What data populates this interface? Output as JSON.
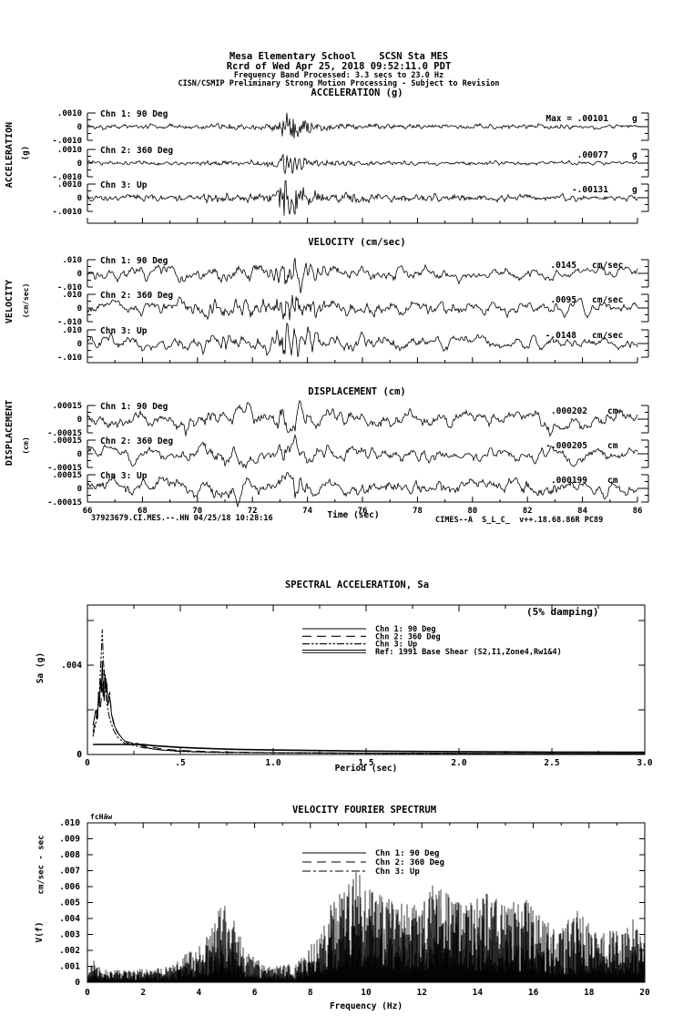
{
  "header": {
    "lines": [
      "Mesa Elementary School    SCSN Sta MES",
      "Rcrd of Wed Apr 25, 2018 09:52:11.0 PDT",
      "Frequency Band Processed: 3.3 secs to 23.0 Hz",
      "CISN/CSMIP Preliminary Strong Motion Processing - Subject to Revision"
    ]
  },
  "footer": {
    "record_id": "37923679.CI.MES.--.HN 04/25/18 10:28:16",
    "processing_stamp": "CIMES--A  S_L_C_  v++.18.68.86R PC89"
  },
  "chart_data": [
    {
      "id": "acceleration_time_series",
      "type": "line",
      "title": "ACCELERATION (g)",
      "axis_label": "ACCELERATION",
      "axis_units": "(g)",
      "x_range": [
        66,
        86
      ],
      "x_ticks": [
        66,
        68,
        70,
        72,
        74,
        76,
        78,
        80,
        82,
        84,
        86
      ],
      "x_tick_labels_visible": false,
      "y_tick_value": 0.001,
      "y_tick_labels": [
        ".0010",
        "0",
        "-.0010"
      ],
      "channels": [
        {
          "label": "Chn 1: 90 Deg",
          "max_label": "Max =  .00101",
          "units": "g",
          "peak": 0.00101
        },
        {
          "label": "Chn 2: 360 Deg",
          "max_label": ".00077",
          "units": "g",
          "peak": 0.00077
        },
        {
          "label": "Chn 3: Up",
          "max_label": "-.00131",
          "units": "g",
          "peak": -0.00131
        }
      ],
      "envelope": {
        "t": [
          66,
          68,
          69.5,
          70.2,
          71.0,
          71.8,
          72.4,
          72.9,
          73.05,
          73.2,
          73.4,
          73.7,
          74.0,
          74.5,
          75.2,
          76.5,
          78,
          80,
          82,
          84,
          86
        ],
        "a": [
          0.05,
          0.06,
          0.07,
          0.09,
          0.12,
          0.1,
          0.1,
          0.25,
          0.55,
          1.0,
          0.8,
          0.5,
          0.32,
          0.2,
          0.13,
          0.09,
          0.07,
          0.06,
          0.06,
          0.05,
          0.05
        ]
      },
      "gen": {
        "hi_w": 1,
        "lo_w": 3,
        "lo_amp": 0.16,
        "seeds": [
          101,
          102,
          103
        ]
      }
    },
    {
      "id": "velocity_time_series",
      "type": "line",
      "title": "VELOCITY (cm/sec)",
      "axis_label": "VELOCITY",
      "axis_units": "(cm/sec)",
      "x_range": [
        66,
        86
      ],
      "x_ticks": [
        66,
        68,
        70,
        72,
        74,
        76,
        78,
        80,
        82,
        84,
        86
      ],
      "x_tick_labels_visible": false,
      "y_tick_value": 0.01,
      "y_tick_labels": [
        ".010",
        "0",
        "-.010"
      ],
      "channels": [
        {
          "label": "Chn 1: 90 Deg",
          "max_label": ".0145",
          "units": "cm/sec",
          "peak": 0.0145
        },
        {
          "label": "Chn 2: 360 Deg",
          "max_label": ".0095",
          "units": "cm/sec",
          "peak": 0.0095
        },
        {
          "label": "Chn 3: Up",
          "max_label": "-.0148",
          "units": "cm/sec",
          "peak": -0.0148
        }
      ],
      "envelope": {
        "t": [
          66,
          68,
          69.5,
          70.2,
          71.0,
          71.8,
          72.4,
          72.9,
          73.05,
          73.2,
          73.4,
          73.7,
          74.0,
          74.5,
          75.2,
          76.5,
          78,
          80,
          82,
          84,
          86
        ],
        "a": [
          0.1,
          0.12,
          0.14,
          0.22,
          0.28,
          0.22,
          0.25,
          0.45,
          0.7,
          1.0,
          0.85,
          0.6,
          0.45,
          0.32,
          0.22,
          0.16,
          0.13,
          0.11,
          0.1,
          0.09,
          0.09
        ]
      },
      "gen": {
        "hi_w": 2,
        "lo_w": 6,
        "lo_amp": 0.3,
        "seeds": [
          201,
          202,
          203
        ]
      }
    },
    {
      "id": "displacement_time_series",
      "type": "line",
      "title": "DISPLACEMENT (cm)",
      "axis_label": "DISPLACEMENT",
      "axis_units": "(cm)",
      "xlabel": "Time (sec)",
      "x_range": [
        66,
        86
      ],
      "x_ticks": [
        66,
        68,
        70,
        72,
        74,
        76,
        78,
        80,
        82,
        84,
        86
      ],
      "x_tick_labels": [
        "66",
        "68",
        "70",
        "72",
        "74",
        "76",
        "78",
        "80",
        "82",
        "84",
        "86"
      ],
      "x_tick_labels_visible": true,
      "y_tick_value": 0.00015,
      "y_tick_labels": [
        ".00015",
        "0",
        "-.00015"
      ],
      "channels": [
        {
          "label": "Chn 1: 90 Deg",
          "max_label": ".000202",
          "units": "cm",
          "peak": 0.000202
        },
        {
          "label": "Chn 2: 360 Deg",
          "max_label": "-.000205",
          "units": "cm",
          "peak": -0.000205
        },
        {
          "label": "Chn 3: Up",
          "max_label": ".000199",
          "units": "cm",
          "peak": 0.000199
        }
      ],
      "envelope": {
        "t": [
          66,
          68,
          69.5,
          70.2,
          71.0,
          71.8,
          72.4,
          72.9,
          73.05,
          73.2,
          73.4,
          73.7,
          74.0,
          74.5,
          75.2,
          76.5,
          78,
          80,
          82,
          84,
          86
        ],
        "a": [
          0.3,
          0.32,
          0.38,
          0.55,
          0.6,
          0.45,
          0.42,
          0.6,
          0.8,
          1.0,
          0.9,
          0.7,
          0.6,
          0.5,
          0.45,
          0.42,
          0.4,
          0.38,
          0.36,
          0.34,
          0.32
        ]
      },
      "gen": {
        "hi_w": 4,
        "lo_w": 13,
        "lo_amp": 0.55,
        "seeds": [
          301,
          302,
          303
        ]
      }
    },
    {
      "id": "spectral_acceleration",
      "type": "line",
      "title": "SPECTRAL ACCELERATION, Sa",
      "damping_note": "(5% damping)",
      "xlabel": "Period (sec)",
      "ylabel": "Sa (g)",
      "xlim": [
        0,
        3
      ],
      "ylim": [
        0,
        0.0067
      ],
      "x_ticks": [
        0,
        0.5,
        1.0,
        1.5,
        2.0,
        2.5,
        3.0
      ],
      "x_tick_labels": [
        "0",
        ".5",
        "1.0",
        "1.5",
        "2.0",
        "2.5",
        "3.0"
      ],
      "y_ticks": [
        {
          "v": 0,
          "label": "0"
        },
        {
          "v": 0.002,
          "label": ""
        },
        {
          "v": 0.004,
          "label": ".004"
        },
        {
          "v": 0.006,
          "label": ""
        }
      ],
      "legend": [
        {
          "label": "Chn 1: 90 Deg",
          "style": "solid"
        },
        {
          "label": "Chn 2: 360 Deg",
          "style": "long-dash"
        },
        {
          "label": "Chn 3: Up",
          "style": "dash-dot-dot"
        },
        {
          "label": "Ref: 1991 Base Shear (S2,I1,Zone4,Rw1&4)",
          "style": "double-solid"
        }
      ],
      "series": [
        {
          "name": "Chn 1: 90 Deg",
          "style": "solid",
          "x": [
            0.03,
            0.045,
            0.055,
            0.06,
            0.065,
            0.07,
            0.075,
            0.08,
            0.085,
            0.09,
            0.095,
            0.1,
            0.105,
            0.11,
            0.12,
            0.13,
            0.14,
            0.16,
            0.18,
            0.2,
            0.23,
            0.27,
            0.3,
            0.35,
            0.4,
            0.5,
            0.6,
            0.8,
            1.0,
            1.5,
            2.0,
            2.5,
            3.0
          ],
          "y": [
            0.0013,
            0.002,
            0.0016,
            0.0028,
            0.0022,
            0.0034,
            0.0028,
            0.0042,
            0.003,
            0.0024,
            0.0036,
            0.0028,
            0.0032,
            0.0022,
            0.0026,
            0.0018,
            0.0014,
            0.001,
            0.0008,
            0.0006,
            0.00045,
            0.0005,
            0.00035,
            0.00025,
            0.0002,
            0.00015,
            0.00012,
            9e-05,
            8e-05,
            6e-05,
            5e-05,
            4e-05,
            4e-05
          ]
        },
        {
          "name": "Chn 2: 360 Deg",
          "style": "long-dash",
          "x": [
            0.03,
            0.05,
            0.06,
            0.07,
            0.08,
            0.085,
            0.09,
            0.095,
            0.1,
            0.11,
            0.12,
            0.13,
            0.15,
            0.17,
            0.2,
            0.25,
            0.3,
            0.4,
            0.5,
            0.7,
            1.0,
            1.5,
            2.0,
            3.0
          ],
          "y": [
            0.001,
            0.0018,
            0.0024,
            0.002,
            0.0032,
            0.0026,
            0.0038,
            0.003,
            0.0034,
            0.0024,
            0.0028,
            0.0018,
            0.0012,
            0.0009,
            0.0006,
            0.0005,
            0.0004,
            0.00025,
            0.00018,
            0.00012,
            8e-05,
            6e-05,
            5e-05,
            4e-05
          ]
        },
        {
          "name": "Chn 3: Up",
          "style": "dash-dot-dot",
          "x": [
            0.03,
            0.05,
            0.06,
            0.065,
            0.07,
            0.075,
            0.08,
            0.085,
            0.09,
            0.1,
            0.11,
            0.12,
            0.14,
            0.16,
            0.2,
            0.25,
            0.3,
            0.4,
            0.5,
            0.7,
            1.0,
            1.5,
            2.0,
            3.0
          ],
          "y": [
            0.0008,
            0.0016,
            0.0024,
            0.003,
            0.0038,
            0.0046,
            0.0056,
            0.0044,
            0.0036,
            0.0026,
            0.002,
            0.0016,
            0.0011,
            0.0008,
            0.0005,
            0.0004,
            0.0003,
            0.0002,
            0.00013,
            9e-05,
            7e-05,
            5e-05,
            4e-05,
            3e-05
          ]
        },
        {
          "name": "Ref: 1991 Base Shear (S2,I1,Zone4,Rw1&4)",
          "style": "double-solid",
          "x": [
            0.03,
            0.1,
            0.2,
            0.3,
            0.35,
            0.4,
            0.5,
            0.6,
            0.8,
            1.0,
            1.5,
            2.0,
            2.5,
            3.0
          ],
          "y": [
            0.00045,
            0.00045,
            0.00045,
            0.00045,
            0.0004,
            0.00037,
            0.00032,
            0.00028,
            0.00023,
            0.0002,
            0.00015,
            0.000126,
            0.000108,
            9.6e-05
          ]
        }
      ]
    },
    {
      "id": "velocity_fourier_spectrum",
      "type": "line",
      "title": "VELOCITY FOURIER SPECTRUM",
      "window_note": "fcHäw",
      "xlabel": "Frequency (Hz)",
      "ylabel": "V(f)",
      "units_label": "cm/sec - sec",
      "xlim": [
        0,
        20
      ],
      "ylim": [
        0,
        0.01
      ],
      "x_ticks": [
        0,
        2,
        4,
        6,
        8,
        10,
        12,
        14,
        16,
        18,
        20
      ],
      "x_tick_labels": [
        "0",
        "2",
        "4",
        "6",
        "8",
        "10",
        "12",
        "14",
        "16",
        "18",
        "20"
      ],
      "y_tick_labels": [
        ".010",
        ".009",
        ".008",
        ".007",
        ".006",
        ".005",
        ".004",
        ".003",
        ".002",
        ".001",
        "0"
      ],
      "legend": [
        {
          "label": "Chn 1: 90 Deg",
          "style": "solid"
        },
        {
          "label": "Chn 2: 360 Deg",
          "style": "long-dash"
        },
        {
          "label": "Chn 3: Up",
          "style": "dash-dot"
        }
      ],
      "envelope": {
        "f": [
          0,
          0.2,
          0.5,
          1.5,
          3.0,
          4.2,
          4.6,
          4.9,
          5.3,
          5.7,
          6.5,
          7.5,
          8.3,
          8.8,
          9.3,
          9.65,
          10.0,
          10.5,
          11.2,
          12.0,
          12.45,
          13.0,
          13.6,
          14.3,
          15.0,
          15.7,
          16.3,
          17.0,
          17.6,
          18.3,
          19.0,
          19.6,
          20
        ],
        "v": [
          0.0008,
          0.0015,
          0.0008,
          0.0008,
          0.001,
          0.0028,
          0.0042,
          0.005,
          0.0038,
          0.002,
          0.001,
          0.0012,
          0.003,
          0.0055,
          0.006,
          0.0078,
          0.006,
          0.0055,
          0.005,
          0.0055,
          0.0068,
          0.0055,
          0.005,
          0.0058,
          0.0048,
          0.0055,
          0.004,
          0.0035,
          0.0045,
          0.003,
          0.0035,
          0.004,
          0.0025
        ]
      },
      "noise_floor": 0.0003
    }
  ]
}
